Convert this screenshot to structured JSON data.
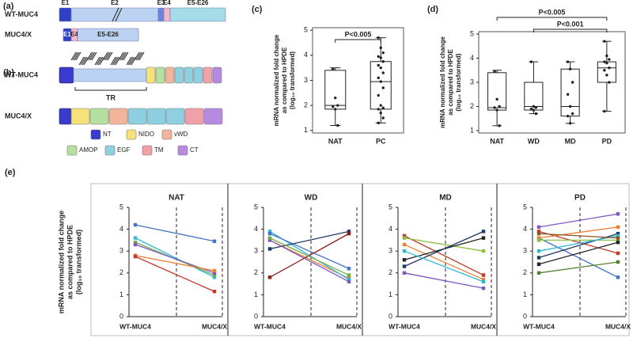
{
  "panel_labels": [
    "(a)",
    "(b)",
    "(c)",
    "(d)",
    "(e)"
  ],
  "diagram": {
    "a": {
      "rows": [
        {
          "label": "WT-MUC4",
          "exons": [
            "E1",
            "E2",
            "E3",
            "E4",
            "E5-E26"
          ]
        },
        {
          "label": "MUC4/X",
          "exons": [
            "E1",
            "E4",
            "E5-E26"
          ]
        }
      ]
    },
    "b": {
      "rows": [
        "WT-MUC4",
        "MUC4/X"
      ],
      "repeat_label": "TR",
      "legend": [
        "NT",
        "NIDO",
        "vWD",
        "AMOP",
        "EGF",
        "TM",
        "CT"
      ]
    }
  },
  "chart_data": [
    {
      "type": "box",
      "categories": [
        "NAT",
        "PC"
      ],
      "ylabel": [
        "mRNA normalized fold change",
        "as compared to HPDE",
        "(log₁₀ transformed)"
      ],
      "ylim": [
        0.9,
        5.1
      ],
      "yticks": [
        1,
        2,
        3,
        4,
        5
      ],
      "boxes": [
        {
          "min": 1.2,
          "q1": 1.85,
          "median": 2.0,
          "q3": 3.4,
          "max": 3.5,
          "points": [
            3.45,
            2.3,
            2.0,
            1.95,
            1.85,
            1.2
          ]
        },
        {
          "min": 1.3,
          "q1": 1.85,
          "median": 2.95,
          "q3": 3.75,
          "max": 4.7,
          "points": [
            4.7,
            4.3,
            4.1,
            3.95,
            3.9,
            3.75,
            3.6,
            3.5,
            3.3,
            3.1,
            2.95,
            2.7,
            2.4,
            2.0,
            1.9,
            1.85,
            1.7,
            1.5,
            1.3
          ]
        }
      ],
      "annotations": [
        "P<0.005"
      ]
    },
    {
      "type": "box",
      "categories": [
        "NAT",
        "WD",
        "MD",
        "PD"
      ],
      "ylabel": [
        "mRNA normalized fold change",
        "as compared to HPDE",
        "(log₁₀ transformed)"
      ],
      "ylim": [
        0.9,
        5.1
      ],
      "yticks": [
        1,
        2,
        3,
        4,
        5
      ],
      "boxes": [
        {
          "min": 1.2,
          "q1": 1.85,
          "median": 1.95,
          "q3": 3.4,
          "max": 3.5,
          "points": [
            3.45,
            2.3,
            2.0,
            1.95,
            1.85,
            1.2
          ]
        },
        {
          "min": 1.7,
          "q1": 1.85,
          "median": 2.0,
          "q3": 3.0,
          "max": 3.85,
          "points": [
            3.85,
            2.0,
            1.95,
            1.9,
            1.85,
            1.7
          ]
        },
        {
          "min": 1.3,
          "q1": 1.6,
          "median": 2.0,
          "q3": 3.55,
          "max": 3.85,
          "points": [
            3.85,
            3.55,
            3.0,
            2.5,
            2.0,
            1.7,
            1.6,
            1.3
          ]
        },
        {
          "min": 1.8,
          "q1": 3.0,
          "median": 3.6,
          "q3": 3.85,
          "max": 4.7,
          "points": [
            4.7,
            4.1,
            3.95,
            3.85,
            3.8,
            3.6,
            3.5,
            3.3,
            3.0,
            1.8
          ]
        }
      ],
      "annotations": [
        "P<0.005",
        "P<0.001"
      ]
    },
    {
      "type": "line",
      "title": "NAT",
      "categories": [
        "WT-MUC4",
        "MUC4/X"
      ],
      "ylabel": [
        "mRNA normalized fold change",
        "as compared to HPDE",
        "(log₁₀ transformed)"
      ],
      "ylim": [
        0,
        5
      ],
      "yticks": [
        0,
        1,
        2,
        3,
        4,
        5
      ],
      "series": [
        {
          "color": "#4472c4",
          "values": [
            4.2,
            3.45
          ]
        },
        {
          "color": "#2fb7d6",
          "values": [
            3.6,
            1.8
          ]
        },
        {
          "color": "#70ad47",
          "values": [
            3.4,
            1.9
          ]
        },
        {
          "color": "#7e57c2",
          "values": [
            3.3,
            2.0
          ]
        },
        {
          "color": "#ed7d31",
          "values": [
            2.8,
            2.1
          ]
        },
        {
          "color": "#c0392b",
          "values": [
            2.75,
            1.15
          ]
        }
      ]
    },
    {
      "type": "line",
      "title": "WD",
      "categories": [
        "WT-MUC4",
        "MUC4/X"
      ],
      "ylim": [
        0,
        5
      ],
      "yticks": [
        0,
        1,
        2,
        3,
        4,
        5
      ],
      "series": [
        {
          "color": "#ed7d31",
          "values": [
            3.5,
            1.75
          ]
        },
        {
          "color": "#2fb7d6",
          "values": [
            3.9,
            1.7
          ]
        },
        {
          "color": "#4472c4",
          "values": [
            3.8,
            2.2
          ]
        },
        {
          "color": "#1f3864",
          "values": [
            3.1,
            3.9
          ]
        },
        {
          "color": "#8b1a1a",
          "values": [
            1.8,
            3.8
          ]
        },
        {
          "color": "#7e57c2",
          "values": [
            3.5,
            1.6
          ]
        },
        {
          "color": "#70ad47",
          "values": [
            3.6,
            1.9
          ]
        }
      ]
    },
    {
      "type": "line",
      "title": "MD",
      "categories": [
        "WT-MUC4",
        "MUC4/X"
      ],
      "ylim": [
        0,
        5
      ],
      "yticks": [
        0,
        1,
        2,
        3,
        4,
        5
      ],
      "series": [
        {
          "color": "#c0392b",
          "values": [
            3.7,
            1.9
          ]
        },
        {
          "color": "#8bbf3f",
          "values": [
            3.6,
            3.0
          ]
        },
        {
          "color": "#ed7d31",
          "values": [
            3.3,
            1.7
          ]
        },
        {
          "color": "#222222",
          "values": [
            2.6,
            3.6
          ]
        },
        {
          "color": "#1f3864",
          "values": [
            2.3,
            3.9
          ]
        },
        {
          "color": "#7e57c2",
          "values": [
            2.0,
            1.3
          ]
        },
        {
          "color": "#2fb7d6",
          "values": [
            3.0,
            1.6
          ]
        }
      ]
    },
    {
      "type": "line",
      "title": "PD",
      "categories": [
        "WT-MUC4",
        "MUC4/X"
      ],
      "ylim": [
        0,
        5
      ],
      "yticks": [
        0,
        1,
        2,
        3,
        4,
        5
      ],
      "series": [
        {
          "color": "#7e57c2",
          "values": [
            4.1,
            4.7
          ]
        },
        {
          "color": "#c0392b",
          "values": [
            3.9,
            2.9
          ]
        },
        {
          "color": "#4472c4",
          "values": [
            3.6,
            1.8
          ]
        },
        {
          "color": "#ed7d31",
          "values": [
            3.6,
            4.1
          ]
        },
        {
          "color": "#8bbf3f",
          "values": [
            3.5,
            3.5
          ]
        },
        {
          "color": "#1f3864",
          "values": [
            2.7,
            3.8
          ]
        },
        {
          "color": "#548235",
          "values": [
            2.0,
            2.5
          ]
        },
        {
          "color": "#222222",
          "values": [
            2.4,
            3.4
          ]
        },
        {
          "color": "#2fb7d6",
          "values": [
            3.0,
            3.7
          ]
        },
        {
          "color": "#8d5524",
          "values": [
            3.8,
            3.6
          ]
        }
      ]
    }
  ]
}
